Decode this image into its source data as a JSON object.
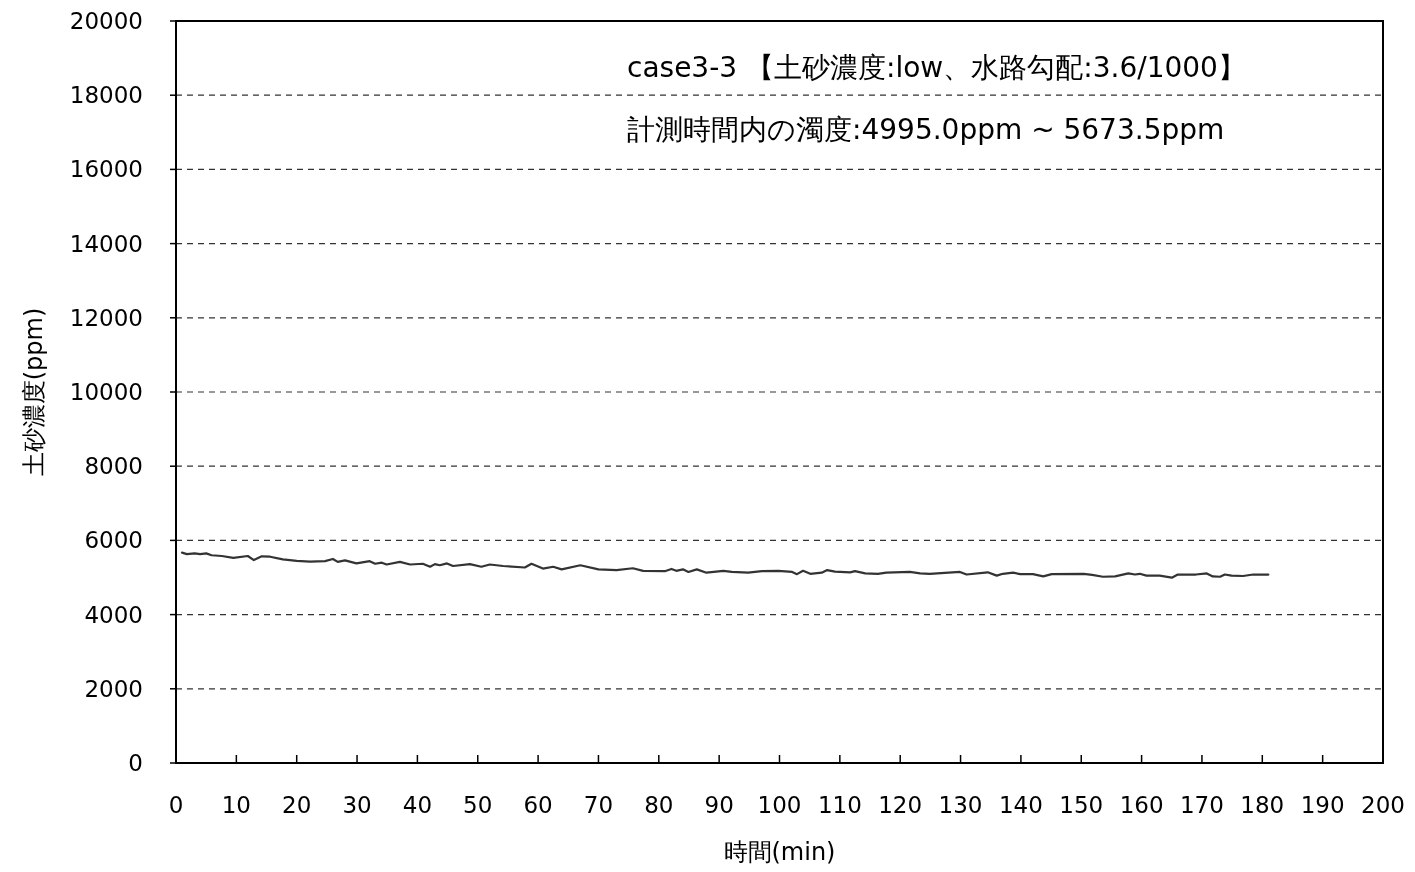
{
  "chart_data": {
    "type": "line",
    "xlabel": "時間(min)",
    "ylabel": "土砂濃度(ppm)",
    "annotations": [
      "case3-3 【土砂濃度:low、水路勾配:3.6/1000】",
      "計測時間内の濁度:4995.0ppm ~ 5673.5ppm"
    ],
    "xlim": [
      0,
      200
    ],
    "xticks": [
      0,
      10,
      20,
      30,
      40,
      50,
      60,
      70,
      80,
      90,
      100,
      110,
      120,
      130,
      140,
      150,
      160,
      170,
      180,
      190,
      200
    ],
    "ylim": [
      0,
      20000
    ],
    "yticks": [
      0,
      2000,
      4000,
      6000,
      8000,
      10000,
      12000,
      14000,
      16000,
      18000,
      20000
    ],
    "grid": "y",
    "marker": "none",
    "line_style": "solid",
    "series": [
      {
        "color": "#333333",
        "x": [
          1.0,
          1.8,
          3.1,
          4.0,
          5.0,
          5.9,
          7.6,
          9.5,
          11.9,
          12.9,
          14.2,
          15.6,
          17.7,
          20.0,
          22.2,
          24.7,
          26.0,
          26.8,
          28.0,
          29.9,
          32.1,
          33.0,
          34.1,
          34.9,
          37.1,
          38.8,
          40.9,
          42.1,
          42.9,
          43.7,
          44.9,
          45.9,
          48.7,
          50.6,
          52.0,
          54.2,
          57.8,
          58.9,
          60.8,
          62.5,
          63.9,
          67.0,
          70.0,
          73.0,
          75.7,
          77.4,
          81.0,
          82.1,
          82.9,
          84.0,
          84.9,
          86.3,
          87.9,
          90.7,
          92.1,
          94.8,
          97.1,
          99.8,
          102.1,
          102.9,
          103.9,
          105.1,
          107.0,
          107.9,
          109.2,
          111.7,
          112.5,
          114.2,
          116.3,
          117.7,
          121.6,
          123.3,
          124.9,
          129.9,
          131.0,
          134.5,
          136.0,
          137.0,
          138.7,
          139.9,
          142.0,
          143.7,
          145.1,
          150.4,
          151.8,
          153.6,
          155.6,
          157.8,
          158.9,
          159.7,
          160.8,
          163.0,
          165.0,
          166.0,
          169.0,
          170.8,
          171.8,
          173.0,
          173.8,
          174.9,
          176.8,
          178.5,
          181.0
        ],
        "values": [
          5670,
          5630,
          5650,
          5630,
          5650,
          5600,
          5580,
          5530,
          5580,
          5470,
          5570,
          5560,
          5490,
          5450,
          5430,
          5440,
          5500,
          5420,
          5460,
          5380,
          5440,
          5370,
          5400,
          5350,
          5420,
          5350,
          5370,
          5290,
          5360,
          5330,
          5380,
          5310,
          5360,
          5290,
          5350,
          5310,
          5270,
          5370,
          5240,
          5290,
          5220,
          5330,
          5220,
          5200,
          5250,
          5180,
          5170,
          5230,
          5180,
          5220,
          5150,
          5220,
          5130,
          5180,
          5150,
          5130,
          5170,
          5180,
          5150,
          5090,
          5180,
          5100,
          5130,
          5200,
          5160,
          5140,
          5170,
          5110,
          5100,
          5130,
          5150,
          5110,
          5100,
          5150,
          5080,
          5140,
          5050,
          5100,
          5130,
          5090,
          5090,
          5030,
          5090,
          5100,
          5070,
          5020,
          5030,
          5110,
          5080,
          5100,
          5050,
          5050,
          4995,
          5080,
          5080,
          5110,
          5030,
          5020,
          5080,
          5050,
          5040,
          5080,
          5080
        ]
      }
    ]
  }
}
